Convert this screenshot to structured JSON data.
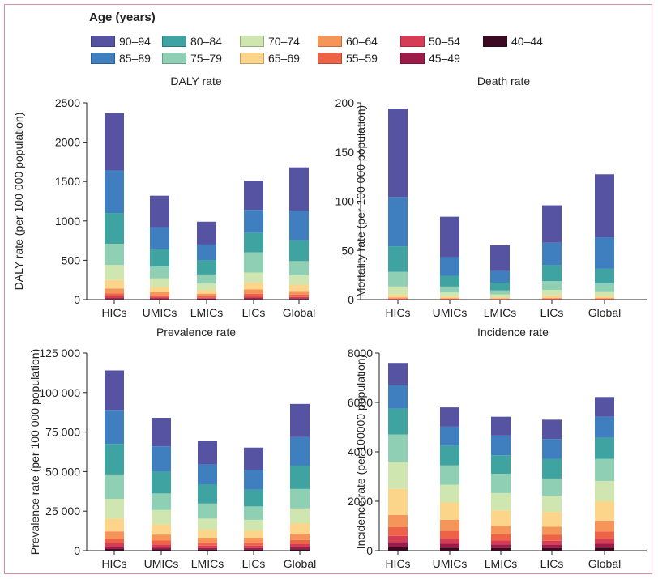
{
  "legend": {
    "title": "Age (years)",
    "items": [
      {
        "label": "90–94",
        "color": "#5653a3"
      },
      {
        "label": "80–84",
        "color": "#3fa3a1"
      },
      {
        "label": "70–74",
        "color": "#cfe6b0"
      },
      {
        "label": "60–64",
        "color": "#f5955a"
      },
      {
        "label": "50–54",
        "color": "#d63c56"
      },
      {
        "label": "40–44",
        "color": "#3b0a22"
      },
      {
        "label": "85–89",
        "color": "#3f7fbf"
      },
      {
        "label": "75–79",
        "color": "#8fd0b4"
      },
      {
        "label": "65–69",
        "color": "#fcd58a"
      },
      {
        "label": "55–59",
        "color": "#ee6248"
      },
      {
        "label": "45–49",
        "color": "#9c1b49"
      }
    ]
  },
  "chart_data": [
    {
      "type": "bar",
      "title": "DALY rate",
      "ylabel": "DALY rate (per 100 000 population)",
      "ylim": [
        0,
        2500
      ],
      "yticks": [
        0,
        500,
        1000,
        1500,
        2000,
        2500
      ],
      "ytick_labels": [
        "0",
        "500",
        "1000",
        "1500",
        "2000",
        "2500"
      ],
      "categories": [
        "HICs",
        "UMICs",
        "LMICs",
        "LICs",
        "Global"
      ],
      "stacked": true,
      "series": [
        {
          "name": "40–44",
          "color": "#3b0a22",
          "values": [
            8,
            6,
            5,
            8,
            7
          ]
        },
        {
          "name": "45–49",
          "color": "#9c1b49",
          "values": [
            12,
            9,
            7,
            12,
            10
          ]
        },
        {
          "name": "50–54",
          "color": "#d63c56",
          "values": [
            22,
            15,
            12,
            20,
            17
          ]
        },
        {
          "name": "55–59",
          "color": "#ee6248",
          "values": [
            38,
            25,
            20,
            35,
            28
          ]
        },
        {
          "name": "60–64",
          "color": "#f5955a",
          "values": [
            60,
            40,
            31,
            55,
            48
          ]
        },
        {
          "name": "65–69",
          "color": "#fcd58a",
          "values": [
            110,
            65,
            48,
            85,
            80
          ]
        },
        {
          "name": "70–74",
          "color": "#cfe6b0",
          "values": [
            190,
            110,
            80,
            130,
            120
          ]
        },
        {
          "name": "75–79",
          "color": "#8fd0b4",
          "values": [
            270,
            150,
            117,
            255,
            180
          ]
        },
        {
          "name": "80–84",
          "color": "#3fa3a1",
          "values": [
            390,
            220,
            180,
            250,
            265
          ]
        },
        {
          "name": "85–89",
          "color": "#3f7fbf",
          "values": [
            540,
            280,
            200,
            290,
            375
          ]
        },
        {
          "name": "90–94",
          "color": "#5653a3",
          "values": [
            730,
            400,
            290,
            370,
            550
          ]
        }
      ]
    },
    {
      "type": "bar",
      "title": "Death rate",
      "ylabel": "Mortality rate (per 100 000 population)",
      "ylim": [
        0,
        200
      ],
      "yticks": [
        0,
        50,
        100,
        150,
        200
      ],
      "ytick_labels": [
        "0",
        "50",
        "100",
        "150",
        "200"
      ],
      "categories": [
        "HICs",
        "UMICs",
        "LMICs",
        "LICs",
        "Global"
      ],
      "stacked": true,
      "series": [
        {
          "name": "40–44",
          "color": "#3b0a22",
          "values": [
            0.05,
            0.05,
            0.05,
            0.05,
            0.05
          ]
        },
        {
          "name": "45–49",
          "color": "#9c1b49",
          "values": [
            0.1,
            0.1,
            0.1,
            0.1,
            0.1
          ]
        },
        {
          "name": "50–54",
          "color": "#d63c56",
          "values": [
            0.3,
            0.2,
            0.2,
            0.3,
            0.2
          ]
        },
        {
          "name": "55–59",
          "color": "#ee6248",
          "values": [
            0.6,
            0.4,
            0.3,
            0.5,
            0.4
          ]
        },
        {
          "name": "60–64",
          "color": "#f5955a",
          "values": [
            1.2,
            0.7,
            0.5,
            0.9,
            0.8
          ]
        },
        {
          "name": "65–69",
          "color": "#fcd58a",
          "values": [
            3,
            1.8,
            1.3,
            2.5,
            2
          ]
        },
        {
          "name": "70–74",
          "color": "#cfe6b0",
          "values": [
            8,
            4,
            2.8,
            5.5,
            4.8
          ]
        },
        {
          "name": "75–79",
          "color": "#8fd0b4",
          "values": [
            15,
            6,
            4,
            9,
            8
          ]
        },
        {
          "name": "80–84",
          "color": "#3fa3a1",
          "values": [
            26,
            11,
            8,
            16,
            15
          ]
        },
        {
          "name": "85–89",
          "color": "#3f7fbf",
          "values": [
            50,
            19,
            12,
            23,
            32
          ]
        },
        {
          "name": "90–94",
          "color": "#5653a3",
          "values": [
            90,
            41,
            26,
            38,
            64
          ]
        }
      ]
    },
    {
      "type": "bar",
      "title": "Prevalence rate",
      "ylabel": "Prevalence rate (per 100 000 population)",
      "ylim": [
        0,
        125000
      ],
      "yticks": [
        0,
        25000,
        50000,
        75000,
        100000,
        125000
      ],
      "ytick_labels": [
        "0",
        "25 000",
        "50 000",
        "75 000",
        "100 000",
        "125 000"
      ],
      "categories": [
        "HICs",
        "UMICs",
        "LMICs",
        "LICs",
        "Global"
      ],
      "stacked": true,
      "series": [
        {
          "name": "40–44",
          "color": "#3b0a22",
          "values": [
            1000,
            800,
            700,
            700,
            900
          ]
        },
        {
          "name": "45–49",
          "color": "#9c1b49",
          "values": [
            1500,
            1200,
            1000,
            1000,
            1300
          ]
        },
        {
          "name": "50–54",
          "color": "#d63c56",
          "values": [
            2200,
            1800,
            1500,
            1500,
            1900
          ]
        },
        {
          "name": "55–59",
          "color": "#ee6248",
          "values": [
            3000,
            2600,
            2100,
            2100,
            2700
          ]
        },
        {
          "name": "60–64",
          "color": "#f5955a",
          "values": [
            4500,
            3800,
            3000,
            2900,
            3900
          ]
        },
        {
          "name": "65–69",
          "color": "#fcd58a",
          "values": [
            8000,
            6500,
            5000,
            4600,
            6700
          ]
        },
        {
          "name": "70–74",
          "color": "#cfe6b0",
          "values": [
            12500,
            9000,
            7000,
            6700,
            9300
          ]
        },
        {
          "name": "75–79",
          "color": "#8fd0b4",
          "values": [
            15500,
            10500,
            9500,
            8500,
            12300
          ]
        },
        {
          "name": "80–84",
          "color": "#3fa3a1",
          "values": [
            19300,
            13800,
            12200,
            10500,
            14800
          ]
        },
        {
          "name": "85–89",
          "color": "#3f7fbf",
          "values": [
            21500,
            16000,
            12500,
            12700,
            18000
          ]
        },
        {
          "name": "90–94",
          "color": "#5653a3",
          "values": [
            25000,
            18000,
            15000,
            14000,
            21000
          ]
        }
      ]
    },
    {
      "type": "bar",
      "title": "Incidence rate",
      "ylabel": "Incidence rate (per 100000 population)",
      "ylim": [
        0,
        8000
      ],
      "yticks": [
        0,
        2000,
        4000,
        6000,
        8000
      ],
      "ytick_labels": [
        "0",
        "2000",
        "4000",
        "6000",
        "8000"
      ],
      "categories": [
        "HICs",
        "UMICs",
        "LMICs",
        "LICs",
        "Global"
      ],
      "stacked": true,
      "series": [
        {
          "name": "40–44",
          "color": "#3b0a22",
          "values": [
            150,
            120,
            110,
            100,
            120
          ]
        },
        {
          "name": "45–49",
          "color": "#9c1b49",
          "values": [
            200,
            160,
            140,
            130,
            160
          ]
        },
        {
          "name": "50–54",
          "color": "#d63c56",
          "values": [
            250,
            210,
            170,
            170,
            200
          ]
        },
        {
          "name": "55–59",
          "color": "#ee6248",
          "values": [
            350,
            310,
            240,
            240,
            300
          ]
        },
        {
          "name": "60–64",
          "color": "#f5955a",
          "values": [
            500,
            450,
            340,
            330,
            440
          ]
        },
        {
          "name": "65–69",
          "color": "#fcd58a",
          "values": [
            1050,
            700,
            630,
            600,
            780
          ]
        },
        {
          "name": "70–74",
          "color": "#cfe6b0",
          "values": [
            1100,
            720,
            700,
            650,
            820
          ]
        },
        {
          "name": "75–79",
          "color": "#8fd0b4",
          "values": [
            1100,
            780,
            780,
            700,
            900
          ]
        },
        {
          "name": "80–84",
          "color": "#3fa3a1",
          "values": [
            1050,
            800,
            750,
            800,
            850
          ]
        },
        {
          "name": "85–89",
          "color": "#3f7fbf",
          "values": [
            950,
            770,
            800,
            800,
            850
          ]
        },
        {
          "name": "90–94",
          "color": "#5653a3",
          "values": [
            900,
            780,
            760,
            780,
            800
          ]
        }
      ]
    }
  ]
}
